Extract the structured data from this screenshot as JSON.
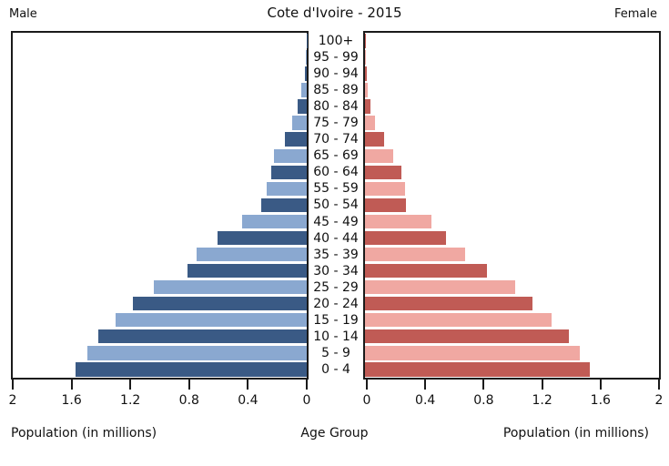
{
  "header": {
    "title": "Cote d'Ivoire - 2015",
    "left_label": "Male",
    "right_label": "Female"
  },
  "footer": {
    "left_axis_label": "Population (in millions)",
    "center_axis_label": "Age Group",
    "right_axis_label": "Population (in millions)"
  },
  "chart_data": {
    "type": "bar",
    "subtype": "population-pyramid",
    "title": "Cote d'Ivoire - 2015",
    "xlabel": "Population (in millions)",
    "center_label": "Age Group",
    "x_max": 2,
    "grid": false,
    "age_groups_top_to_bottom": [
      "100+",
      "95 - 99",
      "90 - 94",
      "85 - 89",
      "80 - 84",
      "75 - 79",
      "70 - 74",
      "65 - 69",
      "60 - 64",
      "55 - 59",
      "50 - 54",
      "45 - 49",
      "40 - 44",
      "35 - 39",
      "30 - 34",
      "25 - 29",
      "20 - 24",
      "15 - 19",
      "10 - 14",
      "5 - 9",
      "0 - 4"
    ],
    "series": [
      {
        "name": "Male",
        "side": "left",
        "color_dark": "#3a5a85",
        "color_light": "#8aa8d0",
        "values_top_to_bottom": [
          0.003,
          0.008,
          0.015,
          0.035,
          0.06,
          0.1,
          0.15,
          0.22,
          0.24,
          0.27,
          0.31,
          0.44,
          0.61,
          0.75,
          0.81,
          1.04,
          1.18,
          1.3,
          1.42,
          1.49,
          1.57
        ]
      },
      {
        "name": "Female",
        "side": "right",
        "color_dark": "#c05b55",
        "color_light": "#f0a8a2",
        "values_top_to_bottom": [
          0.003,
          0.006,
          0.012,
          0.02,
          0.04,
          0.07,
          0.13,
          0.19,
          0.25,
          0.27,
          0.28,
          0.45,
          0.55,
          0.68,
          0.83,
          1.02,
          1.14,
          1.27,
          1.39,
          1.46,
          1.53
        ]
      }
    ],
    "x_axis": {
      "left_ticks": [
        "2",
        "1.6",
        "1.2",
        "0.8",
        "0.4",
        "0"
      ],
      "right_ticks": [
        "0",
        "0.4",
        "0.8",
        "1.2",
        "1.6",
        "2"
      ],
      "tick_values_left": [
        2,
        1.6,
        1.2,
        0.8,
        0.4,
        0
      ],
      "tick_values_right": [
        0,
        0.4,
        0.8,
        1.2,
        1.6,
        2
      ]
    }
  }
}
